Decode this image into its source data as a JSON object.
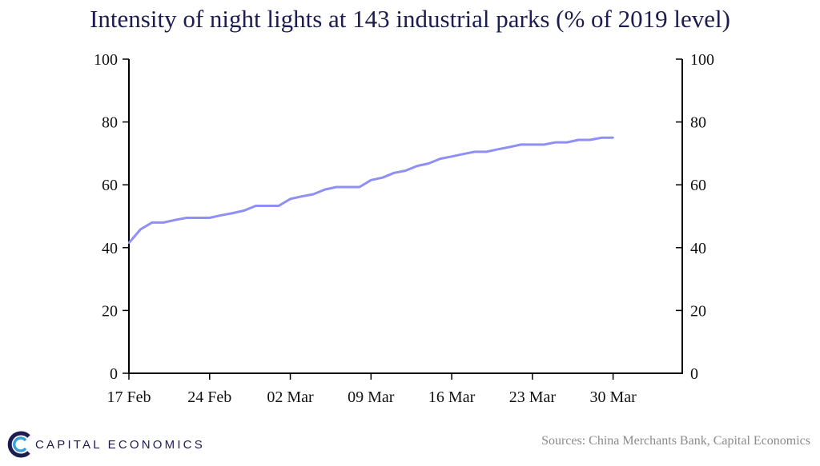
{
  "chart_data": {
    "type": "line",
    "title": "Intensity of night lights at 143 industrial parks (% of 2019 level)",
    "xlabel": "",
    "ylabel": "",
    "ylim": [
      0,
      100
    ],
    "yticks": [
      0,
      20,
      40,
      60,
      80,
      100
    ],
    "y2ticks": [
      0,
      20,
      40,
      60,
      80,
      100
    ],
    "xticks": [
      "17 Feb",
      "24 Feb",
      "02 Mar",
      "09 Mar",
      "16 Mar",
      "23 Mar",
      "30 Mar"
    ],
    "x_range": [
      "17 Feb",
      "05 Apr"
    ],
    "grid": false,
    "series_color": "#8f8ff5",
    "series": [
      {
        "values": [
          {
            "x": "17 Feb",
            "y": 41.5
          },
          {
            "x": "18 Feb",
            "y": 45.8
          },
          {
            "x": "19 Feb",
            "y": 48.0
          },
          {
            "x": "20 Feb",
            "y": 48.0
          },
          {
            "x": "21 Feb",
            "y": 48.8
          },
          {
            "x": "22 Feb",
            "y": 49.5
          },
          {
            "x": "23 Feb",
            "y": 49.5
          },
          {
            "x": "24 Feb",
            "y": 49.5
          },
          {
            "x": "25 Feb",
            "y": 50.3
          },
          {
            "x": "26 Feb",
            "y": 51.0
          },
          {
            "x": "27 Feb",
            "y": 51.8
          },
          {
            "x": "28 Feb",
            "y": 53.3
          },
          {
            "x": "29 Feb",
            "y": 53.3
          },
          {
            "x": "01 Mar",
            "y": 53.3
          },
          {
            "x": "02 Mar",
            "y": 55.5
          },
          {
            "x": "03 Mar",
            "y": 56.3
          },
          {
            "x": "04 Mar",
            "y": 57.0
          },
          {
            "x": "05 Mar",
            "y": 58.5
          },
          {
            "x": "06 Mar",
            "y": 59.3
          },
          {
            "x": "07 Mar",
            "y": 59.3
          },
          {
            "x": "08 Mar",
            "y": 59.3
          },
          {
            "x": "09 Mar",
            "y": 61.5
          },
          {
            "x": "10 Mar",
            "y": 62.3
          },
          {
            "x": "11 Mar",
            "y": 63.8
          },
          {
            "x": "12 Mar",
            "y": 64.5
          },
          {
            "x": "13 Mar",
            "y": 66.0
          },
          {
            "x": "14 Mar",
            "y": 66.8
          },
          {
            "x": "15 Mar",
            "y": 68.3
          },
          {
            "x": "16 Mar",
            "y": 69.0
          },
          {
            "x": "17 Mar",
            "y": 69.8
          },
          {
            "x": "18 Mar",
            "y": 70.5
          },
          {
            "x": "19 Mar",
            "y": 70.5
          },
          {
            "x": "20 Mar",
            "y": 71.3
          },
          {
            "x": "21 Mar",
            "y": 72.0
          },
          {
            "x": "22 Mar",
            "y": 72.8
          },
          {
            "x": "23 Mar",
            "y": 72.8
          },
          {
            "x": "24 Mar",
            "y": 72.8
          },
          {
            "x": "25 Mar",
            "y": 73.5
          },
          {
            "x": "26 Mar",
            "y": 73.5
          },
          {
            "x": "27 Mar",
            "y": 74.3
          },
          {
            "x": "28 Mar",
            "y": 74.3
          },
          {
            "x": "29 Mar",
            "y": 75.0
          },
          {
            "x": "30 Mar",
            "y": 75.0
          }
        ]
      }
    ]
  },
  "footer": {
    "source": "Sources: China Merchants Bank, Capital Economics",
    "brand": "CAPITAL ECONOMICS"
  }
}
